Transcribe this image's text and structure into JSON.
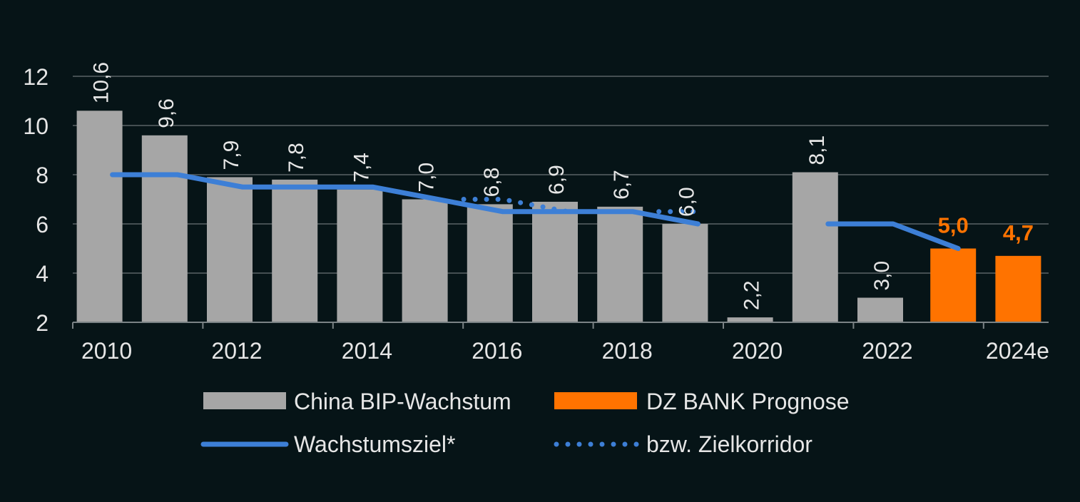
{
  "chart_data": {
    "type": "bar",
    "categories": [
      "2010",
      "2011",
      "2012",
      "2013",
      "2014",
      "2015",
      "2016",
      "2017",
      "2018",
      "2019",
      "2020",
      "2021",
      "2022",
      "2023",
      "2024e"
    ],
    "tick_labels": [
      "2010",
      "2012",
      "2014",
      "2016",
      "2018",
      "2020",
      "2022",
      "2024e"
    ],
    "ylim": [
      2,
      12
    ],
    "yticks": [
      2,
      4,
      6,
      8,
      10,
      12
    ],
    "grid": true,
    "legend_position": "bottom",
    "series": [
      {
        "name": "China BIP-Wachstum",
        "type": "bar",
        "color": "#a6a6a6",
        "values": [
          10.6,
          9.6,
          7.9,
          7.8,
          7.4,
          7.0,
          6.8,
          6.9,
          6.7,
          6.0,
          2.2,
          8.1,
          3.0,
          null,
          null
        ],
        "labels": [
          "10,6",
          "9,6",
          "7,9",
          "7,8",
          "7,4",
          "7,0",
          "6,8",
          "6,9",
          "6,7",
          "6,0",
          "2,2",
          "8,1",
          "3,0",
          "",
          ""
        ]
      },
      {
        "name": "DZ BANK Prognose",
        "type": "bar",
        "color": "#ff7300",
        "values": [
          null,
          null,
          null,
          null,
          null,
          null,
          null,
          null,
          null,
          null,
          null,
          null,
          null,
          5.0,
          4.7
        ],
        "labels": [
          "",
          "",
          "",
          "",
          "",
          "",
          "",
          "",
          "",
          "",
          "",
          "",
          "",
          "5,0",
          "4,7"
        ]
      },
      {
        "name": "Wachstumsziel*",
        "type": "line",
        "color": "#3d7fd6",
        "values": [
          8.0,
          8.0,
          7.5,
          7.5,
          7.5,
          7.0,
          6.5,
          6.5,
          6.5,
          6.0,
          null,
          6.0,
          6.0,
          5.0,
          null
        ]
      },
      {
        "name": "bzw. Zielkorridor",
        "type": "line-dotted",
        "color": "#3d7fd6",
        "segments": [
          [
            [
              2015.4,
              7.0
            ],
            [
              2016,
              7.0
            ],
            [
              2017,
              6.5
            ]
          ],
          [
            [
              2018.4,
              6.5
            ],
            [
              2019,
              6.5
            ]
          ]
        ]
      }
    ],
    "legend": [
      "China BIP-Wachstum",
      "DZ BANK Prognose",
      "Wachstumsziel*",
      "bzw. Zielkorridor"
    ]
  }
}
